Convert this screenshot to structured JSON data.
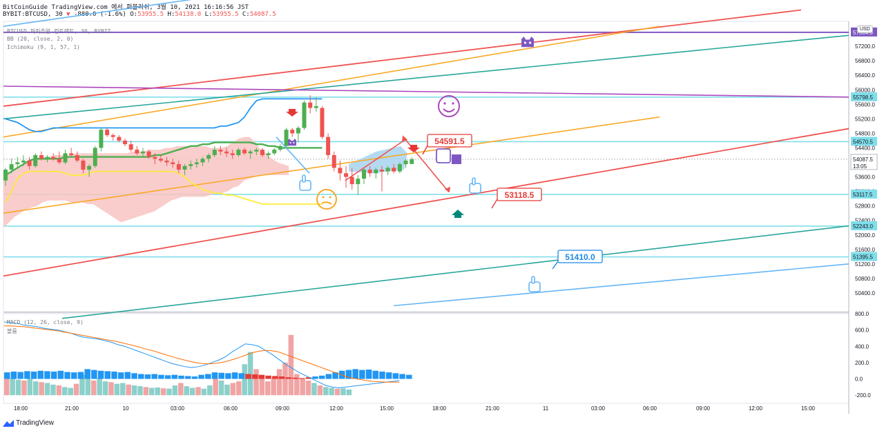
{
  "header": {
    "line1": "BitCoinGuide TradingView.com 에서 퍼블리쉬, 3월 10, 2021 16:16:56 JST",
    "symbol": "BYBIT:BTCUSD, 30",
    "change": "-880.0 (-1.6%)",
    "o_label": "O:",
    "o_value": "53955.5",
    "h_label": "H:",
    "h_value": "54138.0",
    "l_label": "L:",
    "l_value": "53955.5",
    "c_label": "C:",
    "c_value": "54087.5"
  },
  "indicators": {
    "title": "BTCUSD 퍼피츄얼 컨트랙트, 30, BYBIT",
    "bb": "BB (20, close, 2, 0)",
    "ichimoku": "Ichimoku (9, 1, 57, 1)",
    "macd": "MACD (12, 26, close, 9)",
    "macd_sub": "볼륨"
  },
  "currency": "USD",
  "footer": {
    "brand": "TradingView"
  },
  "colors": {
    "bull": "#4caf50",
    "bear": "#ef5350",
    "bb_upper": "#2196f3",
    "bb_basis": "#4caf50",
    "bb_lower": "#ffeb3b",
    "cloud_red": "#f8c4c2",
    "cloud_blue": "#a7d3f0",
    "trend_red": "#ef5350",
    "trend_orange": "#f9a825",
    "trend_teal": "#26a69a",
    "trend_blue": "#64b5f6",
    "purple": "#7e57c2",
    "hline": "#80deea"
  },
  "chart_data": {
    "type": "candlestick",
    "price_axis": {
      "min": 50000,
      "max": 58000,
      "ticks": [
        "57600.0",
        "57200.0",
        "56800.0",
        "56400.0",
        "56000.0",
        "55600.0",
        "55200.0",
        "54800.0",
        "54400.0",
        "54000.0",
        "53600.0",
        "53200.0",
        "52800.0",
        "52400.0",
        "52000.0",
        "51600.0",
        "51200.0",
        "50800.0",
        "50400.0"
      ]
    },
    "time_axis_labels": [
      "18:00",
      "21:00",
      "10",
      "03:00",
      "06:00",
      "09:00",
      "12:00",
      "15:00",
      "18:00",
      "21:00",
      "11",
      "03:00",
      "06:00",
      "09:00",
      "12:00",
      "15:00"
    ],
    "candles": [
      {
        "o": 53500,
        "h": 53850,
        "l": 53350,
        "c": 53800
      },
      {
        "o": 53800,
        "h": 54100,
        "l": 53700,
        "c": 53950
      },
      {
        "o": 53950,
        "h": 54150,
        "l": 53850,
        "c": 54000
      },
      {
        "o": 54000,
        "h": 54200,
        "l": 53900,
        "c": 54050
      },
      {
        "o": 54050,
        "h": 54150,
        "l": 53800,
        "c": 53900
      },
      {
        "o": 53900,
        "h": 54250,
        "l": 53850,
        "c": 54200
      },
      {
        "o": 54200,
        "h": 54300,
        "l": 54050,
        "c": 54100
      },
      {
        "o": 54100,
        "h": 54200,
        "l": 54000,
        "c": 54150
      },
      {
        "o": 54150,
        "h": 54250,
        "l": 54050,
        "c": 54100
      },
      {
        "o": 54100,
        "h": 54300,
        "l": 53950,
        "c": 54000
      },
      {
        "o": 54000,
        "h": 54350,
        "l": 53950,
        "c": 54250
      },
      {
        "o": 54250,
        "h": 54400,
        "l": 54150,
        "c": 54200
      },
      {
        "o": 54200,
        "h": 54300,
        "l": 54000,
        "c": 54050
      },
      {
        "o": 54050,
        "h": 54100,
        "l": 53700,
        "c": 53800
      },
      {
        "o": 53800,
        "h": 53950,
        "l": 53600,
        "c": 53900
      },
      {
        "o": 53900,
        "h": 54450,
        "l": 53850,
        "c": 54400
      },
      {
        "o": 54400,
        "h": 54950,
        "l": 54300,
        "c": 54900
      },
      {
        "o": 54900,
        "h": 54950,
        "l": 54700,
        "c": 54750
      },
      {
        "o": 54750,
        "h": 54800,
        "l": 54600,
        "c": 54700
      },
      {
        "o": 54700,
        "h": 54750,
        "l": 54550,
        "c": 54600
      },
      {
        "o": 54600,
        "h": 54650,
        "l": 54450,
        "c": 54500
      },
      {
        "o": 54500,
        "h": 54600,
        "l": 54300,
        "c": 54350
      },
      {
        "o": 54350,
        "h": 54450,
        "l": 54200,
        "c": 54250
      },
      {
        "o": 54250,
        "h": 54400,
        "l": 54150,
        "c": 54300
      },
      {
        "o": 54300,
        "h": 54350,
        "l": 54100,
        "c": 54150
      },
      {
        "o": 54150,
        "h": 54250,
        "l": 53950,
        "c": 54100
      },
      {
        "o": 54100,
        "h": 54200,
        "l": 54000,
        "c": 54050
      },
      {
        "o": 54050,
        "h": 54150,
        "l": 53900,
        "c": 54000
      },
      {
        "o": 54000,
        "h": 54100,
        "l": 53850,
        "c": 53950
      },
      {
        "o": 53950,
        "h": 54050,
        "l": 53700,
        "c": 53800
      },
      {
        "o": 53800,
        "h": 53950,
        "l": 53650,
        "c": 53900
      },
      {
        "o": 53900,
        "h": 54050,
        "l": 53800,
        "c": 53950
      },
      {
        "o": 53950,
        "h": 54100,
        "l": 53850,
        "c": 54000
      },
      {
        "o": 54000,
        "h": 54150,
        "l": 53900,
        "c": 54100
      },
      {
        "o": 54100,
        "h": 54250,
        "l": 54000,
        "c": 54200
      },
      {
        "o": 54200,
        "h": 54450,
        "l": 54150,
        "c": 54350
      },
      {
        "o": 54350,
        "h": 54450,
        "l": 54200,
        "c": 54300
      },
      {
        "o": 54300,
        "h": 54400,
        "l": 54150,
        "c": 54250
      },
      {
        "o": 54250,
        "h": 54350,
        "l": 54100,
        "c": 54200
      },
      {
        "o": 54200,
        "h": 54400,
        "l": 54150,
        "c": 54350
      },
      {
        "o": 54350,
        "h": 54400,
        "l": 54200,
        "c": 54250
      },
      {
        "o": 54250,
        "h": 54350,
        "l": 54100,
        "c": 54300
      },
      {
        "o": 54300,
        "h": 54400,
        "l": 54200,
        "c": 54350
      },
      {
        "o": 54350,
        "h": 54400,
        "l": 54150,
        "c": 54200
      },
      {
        "o": 54200,
        "h": 54300,
        "l": 54100,
        "c": 54250
      },
      {
        "o": 54250,
        "h": 54400,
        "l": 54200,
        "c": 54350
      },
      {
        "o": 54350,
        "h": 54500,
        "l": 54300,
        "c": 54450
      },
      {
        "o": 54450,
        "h": 54950,
        "l": 54400,
        "c": 54900
      },
      {
        "o": 54900,
        "h": 54950,
        "l": 54700,
        "c": 54800
      },
      {
        "o": 54800,
        "h": 55000,
        "l": 54550,
        "c": 54950
      },
      {
        "o": 54950,
        "h": 55700,
        "l": 54900,
        "c": 55650
      },
      {
        "o": 55650,
        "h": 55850,
        "l": 55350,
        "c": 55500
      },
      {
        "o": 55500,
        "h": 55800,
        "l": 55400,
        "c": 55550
      },
      {
        "o": 55500,
        "h": 55550,
        "l": 54650,
        "c": 54700
      },
      {
        "o": 54700,
        "h": 54800,
        "l": 54100,
        "c": 54200
      },
      {
        "o": 54200,
        "h": 54300,
        "l": 53750,
        "c": 53850
      },
      {
        "o": 53850,
        "h": 54050,
        "l": 53500,
        "c": 53700
      },
      {
        "o": 53700,
        "h": 53900,
        "l": 53300,
        "c": 53600
      },
      {
        "o": 53600,
        "h": 53850,
        "l": 53250,
        "c": 53400
      },
      {
        "o": 53400,
        "h": 53650,
        "l": 53100,
        "c": 53550
      },
      {
        "o": 53550,
        "h": 53850,
        "l": 53400,
        "c": 53800
      },
      {
        "o": 53800,
        "h": 53900,
        "l": 53600,
        "c": 53700
      },
      {
        "o": 53700,
        "h": 53850,
        "l": 53550,
        "c": 53800
      },
      {
        "o": 53800,
        "h": 53900,
        "l": 53200,
        "c": 53750
      },
      {
        "o": 53750,
        "h": 53900,
        "l": 53650,
        "c": 53850
      },
      {
        "o": 53850,
        "h": 53950,
        "l": 53700,
        "c": 53750
      },
      {
        "o": 53750,
        "h": 54000,
        "l": 53700,
        "c": 53950
      },
      {
        "o": 53950,
        "h": 54100,
        "l": 53850,
        "c": 54050
      },
      {
        "o": 53955.5,
        "h": 54138,
        "l": 53955.5,
        "c": 54087.5
      }
    ],
    "bb_upper": [
      55200,
      55150,
      55100,
      55000,
      54900,
      54850,
      54850,
      54900,
      54950,
      54950,
      54950,
      54950,
      54950,
      54950,
      54950,
      54950,
      54950,
      54950,
      54950,
      54950,
      54950,
      54950,
      54950,
      54950,
      54950,
      54950,
      54950,
      54950,
      54950,
      54950,
      54950,
      54950,
      54950,
      54950,
      54950,
      54950,
      55000,
      55000,
      55050,
      55100,
      55250,
      55500,
      55700,
      55750,
      55750,
      55750,
      55750,
      55750,
      55750,
      55750,
      55750,
      55750,
      55750,
      55750
    ],
    "bb_basis": [
      53650,
      53750,
      53850,
      53950,
      54050,
      54100,
      54100,
      54100,
      54100,
      54100,
      54150,
      54150,
      54150,
      54150,
      54150,
      54150,
      54150,
      54150,
      54150,
      54150,
      54150,
      54150,
      54150,
      54150,
      54150,
      54200,
      54200,
      54250,
      54300,
      54350,
      54400,
      54450,
      54450,
      54500,
      54500,
      54550,
      54550,
      54550,
      54550,
      54550,
      54550,
      54550,
      54500,
      54500,
      54450,
      54450,
      54400,
      54400,
      54400,
      54400,
      54400,
      54400,
      54400,
      54400
    ],
    "bb_lower": [
      52900,
      53200,
      53550,
      53700,
      53750,
      53750,
      53750,
      53750,
      53750,
      53750,
      53700,
      53650,
      53650,
      53650,
      53700,
      53750,
      53750,
      53750,
      53750,
      53750,
      53750,
      53750,
      53750,
      53750,
      53750,
      53750,
      53750,
      53750,
      53750,
      53700,
      53600,
      53450,
      53350,
      53250,
      53200,
      53150,
      53150,
      53100,
      53100,
      53050,
      53000,
      52950,
      52900,
      52850,
      52850,
      52850,
      52850,
      52850,
      52850,
      52850,
      52850,
      52850,
      52850,
      52850
    ],
    "drawings": {
      "labels": [
        "54591.5",
        "53118.5",
        "51410.0"
      ],
      "price_tags": [
        {
          "text": "57584.0",
          "price": 57584,
          "color": "#7e57c2"
        },
        {
          "text": "55798.5",
          "price": 55798.5,
          "color": "#80deea"
        },
        {
          "text": "54570.5",
          "price": 54570.5,
          "color": "#80deea"
        },
        {
          "text": "54087.5",
          "price": 54087.5,
          "color": "#ffffff",
          "sub": "13:05"
        },
        {
          "text": "53117.5",
          "price": 53117.5,
          "color": "#80deea"
        },
        {
          "text": "52243.0",
          "price": 52243,
          "color": "#80deea"
        },
        {
          "text": "51395.5",
          "price": 51395.5,
          "color": "#80deea"
        }
      ],
      "top_tick": "5...0"
    },
    "macd": {
      "axis": {
        "min": -300,
        "max": 800,
        "ticks": [
          "800.0",
          "600.0",
          "400.0",
          "200.0",
          "0.0",
          "-200.0"
        ]
      },
      "hist": [
        -80,
        -90,
        -85,
        -95,
        -90,
        -100,
        -95,
        -90,
        -100,
        -85,
        -80,
        -85,
        -120,
        -110,
        -100,
        -95,
        -90,
        -80,
        -85,
        -70,
        -60,
        -55,
        -60,
        -50,
        -45,
        -50,
        -40,
        -35,
        -30,
        -50,
        -60,
        -80,
        -75,
        -70,
        -80,
        -70,
        -60,
        -55,
        -50,
        -40,
        -35,
        -30,
        -20,
        -15,
        -10,
        -20,
        -30,
        -40,
        -60,
        -80,
        -100,
        -110,
        -120,
        -110,
        -115,
        -100,
        -90,
        -80,
        -70,
        -60,
        -50
      ],
      "volume": [
        280,
        210,
        190,
        180,
        200,
        170,
        160,
        150,
        130,
        120,
        100,
        90,
        140,
        250,
        200,
        180,
        210,
        170,
        160,
        140,
        150,
        130,
        120,
        110,
        100,
        90,
        95,
        85,
        80,
        120,
        150,
        110,
        90,
        100,
        80,
        120,
        200,
        180,
        130,
        150,
        170,
        380,
        530,
        320,
        240,
        170,
        200,
        320,
        400,
        740,
        260,
        200,
        180,
        150,
        120,
        100,
        90,
        80,
        85,
        70
      ],
      "macd_line": [
        700,
        690,
        680,
        660,
        650,
        640,
        620,
        610,
        600,
        580,
        560,
        530,
        510,
        500,
        490,
        470,
        450,
        420,
        400,
        370,
        340,
        310,
        280,
        250,
        220,
        190,
        170,
        150,
        140,
        150,
        170,
        200,
        230,
        270,
        330,
        380,
        430,
        420,
        400,
        350,
        300,
        240,
        180,
        130,
        80,
        40,
        0,
        -40,
        -80,
        -100,
        -110,
        -100,
        -90,
        -80,
        -70,
        -60,
        -50,
        -40,
        -30,
        -20
      ],
      "signal_line": [
        650,
        650,
        645,
        640,
        630,
        620,
        610,
        600,
        590,
        575,
        560,
        545,
        530,
        515,
        500,
        485,
        470,
        455,
        435,
        415,
        395,
        370,
        350,
        325,
        300,
        275,
        250,
        230,
        210,
        195,
        185,
        185,
        195,
        210,
        235,
        260,
        290,
        320,
        340,
        350,
        345,
        330,
        300,
        270,
        240,
        210,
        180,
        150,
        120,
        90,
        60,
        30,
        10,
        -5,
        -20,
        -30,
        -35,
        -40,
        -40,
        -40
      ]
    }
  }
}
